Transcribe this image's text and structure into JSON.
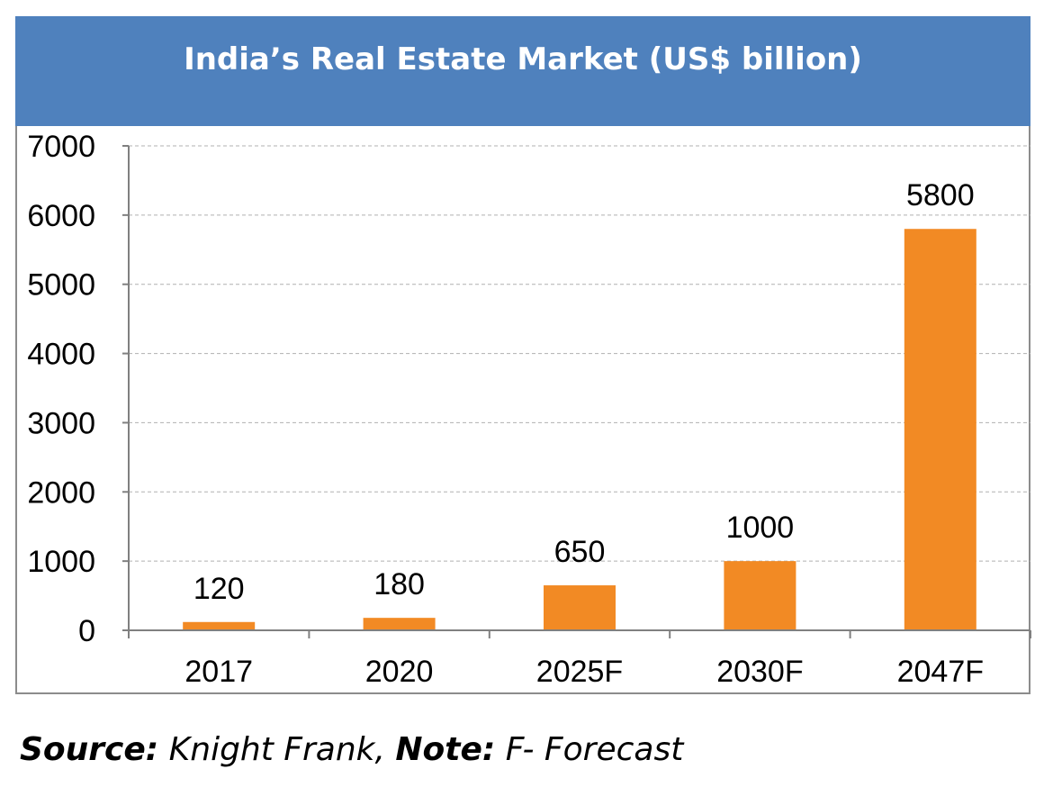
{
  "chart_data": {
    "type": "bar",
    "title": "India’s Real Estate Market (US$ billion)",
    "categories": [
      "2017",
      "2020",
      "2025F",
      "2030F",
      "2047F"
    ],
    "values": [
      120,
      180,
      650,
      1000,
      5800
    ],
    "data_labels": [
      "120",
      "180",
      "650",
      "1000",
      "5800"
    ],
    "ylim": [
      0,
      7000
    ],
    "yticks": [
      "0",
      "1000",
      "2000",
      "3000",
      "4000",
      "5000",
      "6000",
      "7000"
    ],
    "ytick_values": [
      0,
      1000,
      2000,
      3000,
      4000,
      5000,
      6000,
      7000
    ],
    "grid": true,
    "bar_color": "#f28a24",
    "title_bg_color": "#4f81bd"
  },
  "source": {
    "label": "Source:",
    "text": " Knight Frank, ",
    "note_label": "Note:",
    "note_text": " F- Forecast"
  }
}
